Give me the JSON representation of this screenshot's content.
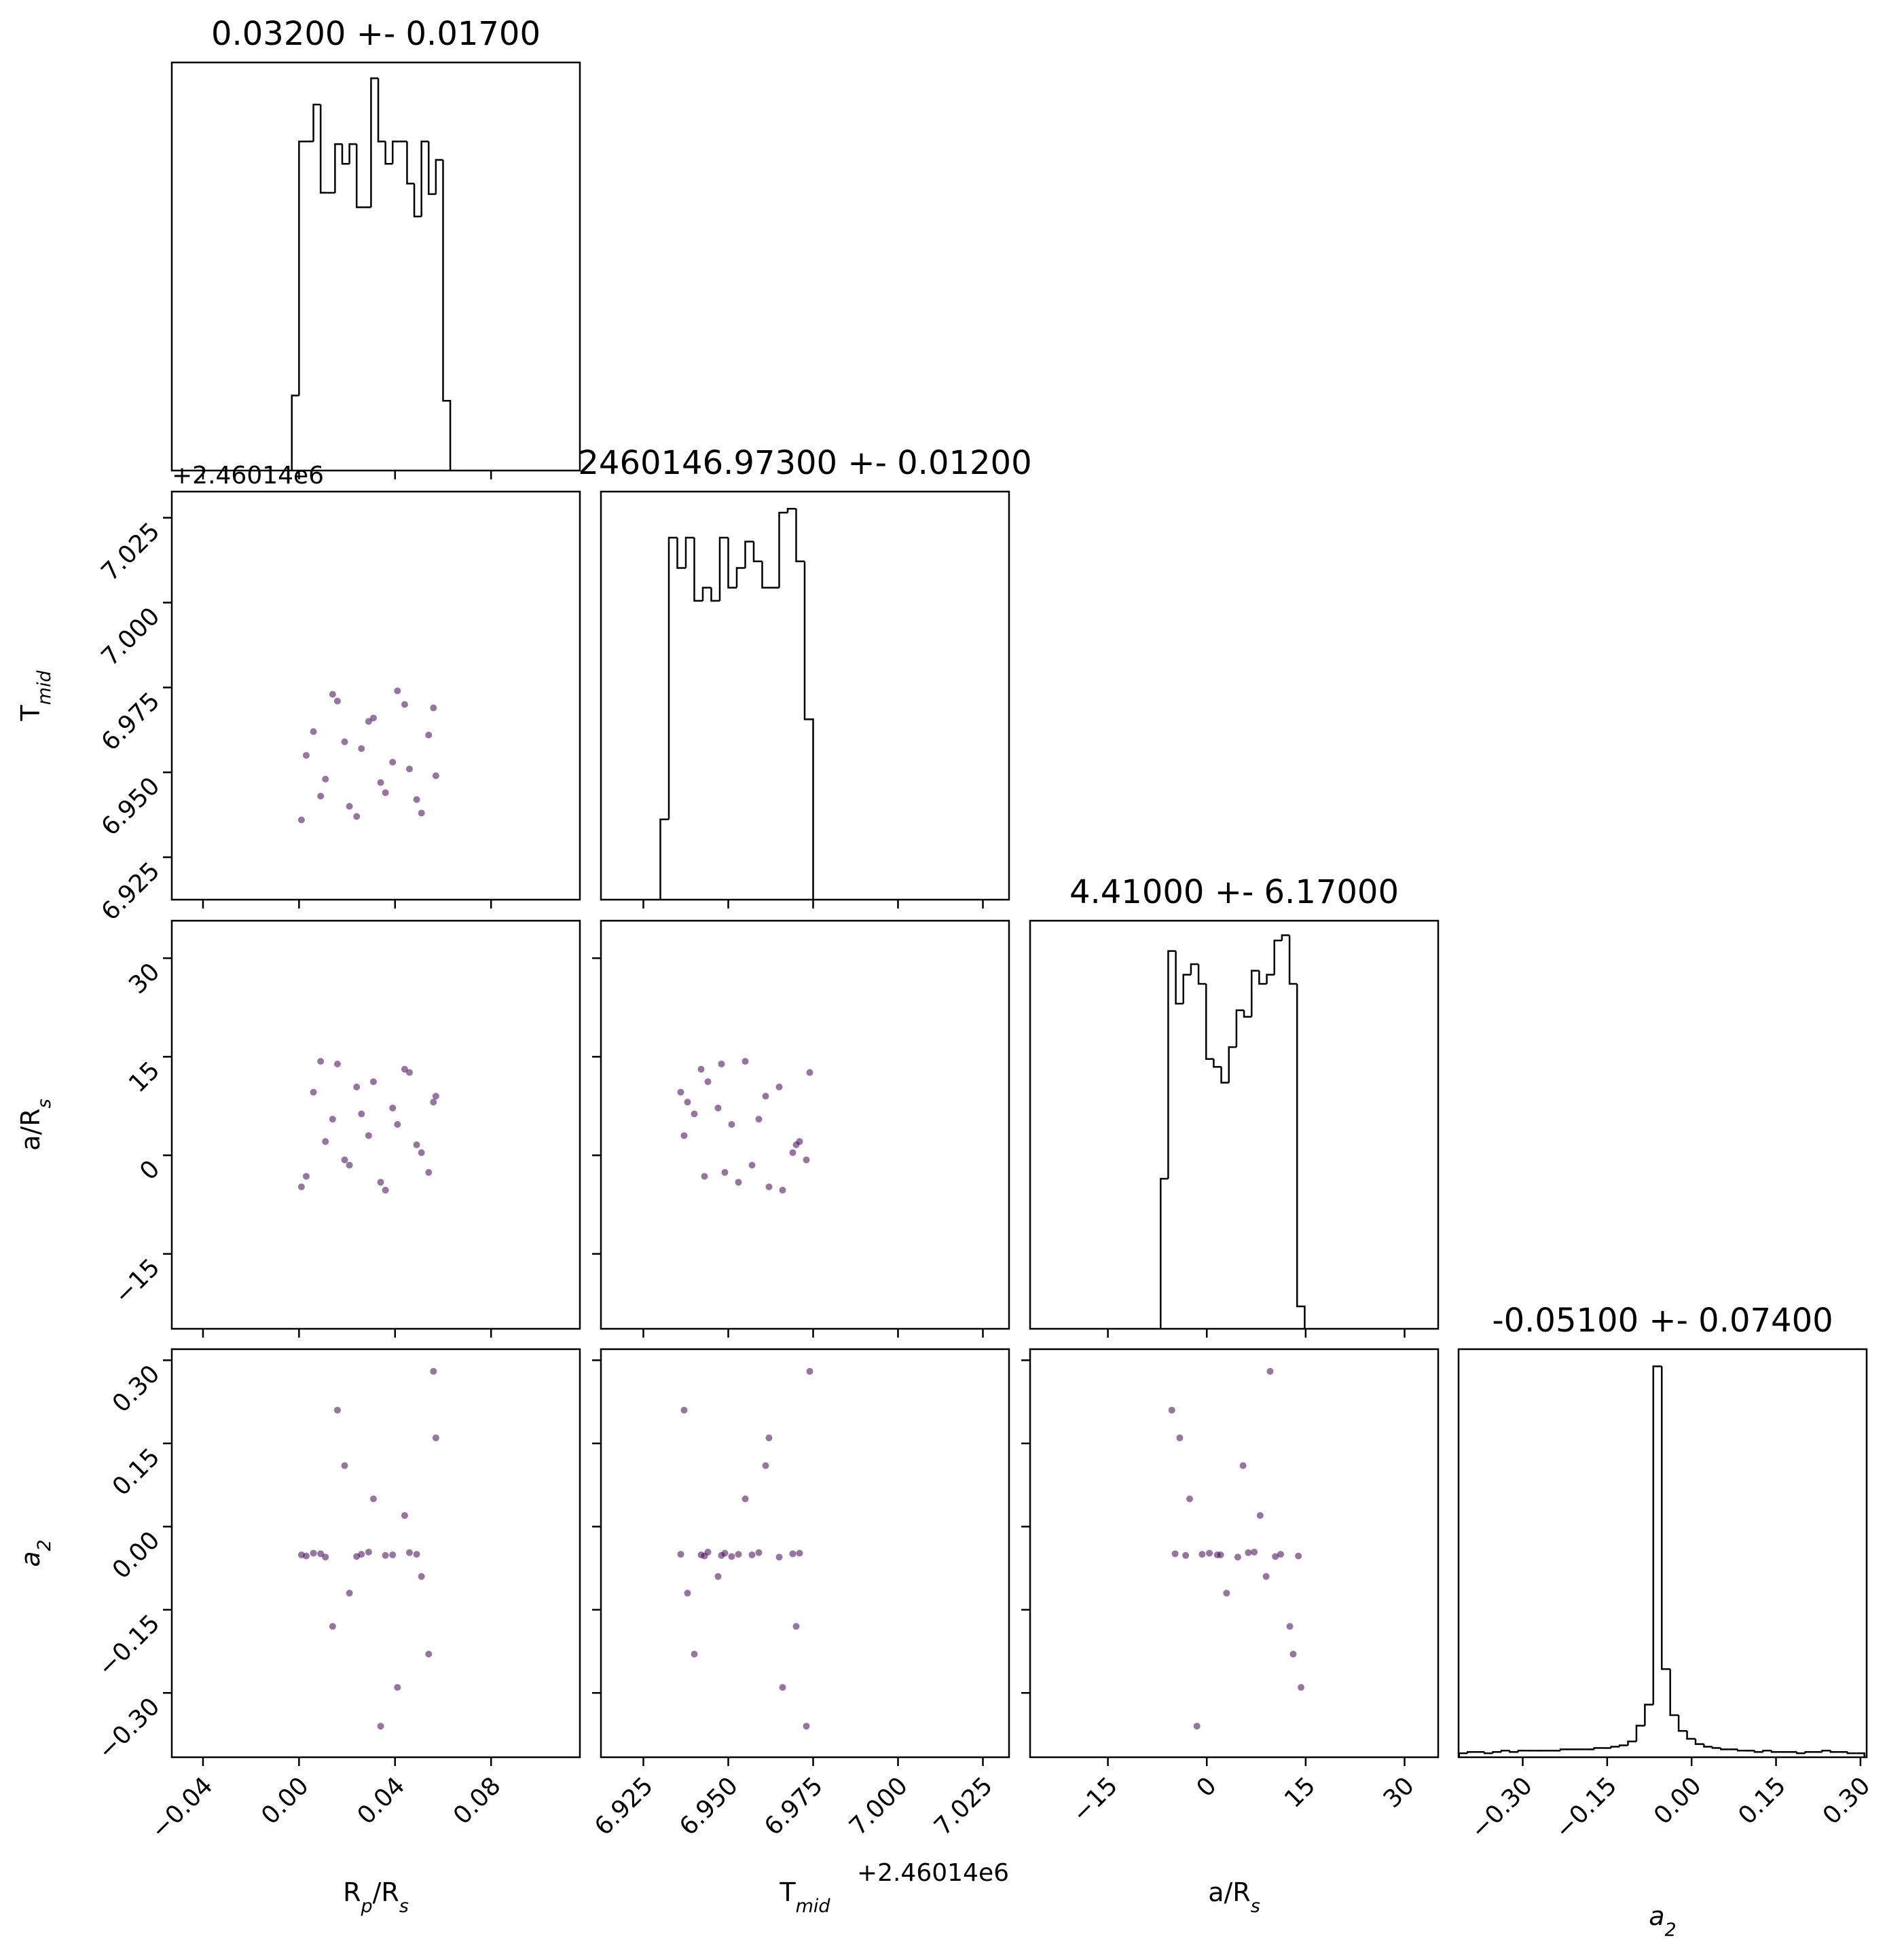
{
  "chart_data": [
    {
      "type": "histogram",
      "title": "0.03200 +- 0.01700",
      "bins": [
        -0.003,
        0,
        0.003,
        0.006,
        0.009,
        0.012,
        0.015,
        0.018,
        0.021,
        0.024,
        0.027,
        0.03,
        0.033,
        0.036,
        0.039,
        0.042,
        0.045,
        0.048,
        0.051,
        0.054,
        0.057,
        0.06,
        0.063
      ],
      "counts": [
        57,
        250,
        250,
        278,
        211,
        211,
        248,
        233,
        248,
        200,
        200,
        298,
        250,
        233,
        250,
        250,
        218,
        193,
        250,
        210,
        236,
        53
      ],
      "xlim": [
        -0.053,
        0.117
      ],
      "xticks": [
        -0.04,
        0,
        0.04,
        0.08
      ],
      "ylim": [
        0,
        310
      ],
      "color": "#000000"
    },
    {
      "type": "scatter",
      "ylabel": [
        "T",
        "mid"
      ],
      "yoffset": "+2.46014e6",
      "color": "#440154",
      "xlim": [
        -0.053,
        0.117
      ],
      "xticks": [
        -0.04,
        0,
        0.04,
        0.08
      ],
      "ylim": [
        6.9125,
        7.0327
      ],
      "yticks": [
        6.925,
        {
          "value": 6.95,
          "label": "6.950"
        },
        6.975,
        {
          "value": 7,
          "label": "7.000"
        },
        7.025
      ],
      "x": [
        0.001,
        0.006,
        0.011,
        0.016,
        0.021,
        0.026,
        0.031,
        0.036,
        0.041,
        0.046,
        0.051,
        0.056,
        0.003,
        0.009,
        0.014,
        0.019,
        0.024,
        0.029,
        0.034,
        0.039,
        0.044,
        0.049,
        0.054,
        0.057
      ],
      "y": [
        6.936,
        6.962,
        6.948,
        6.971,
        6.94,
        6.957,
        6.966,
        6.944,
        6.974,
        6.951,
        6.938,
        6.969,
        6.955,
        6.943,
        6.973,
        6.959,
        6.937,
        6.965,
        6.947,
        6.953,
        6.97,
        6.942,
        6.961,
        6.949
      ]
    },
    {
      "type": "histogram",
      "title": "2460146.97300 +- 0.01200",
      "bins": [
        6.93,
        6.9325,
        6.935,
        6.9375,
        6.94,
        6.9425,
        6.945,
        6.9475,
        6.95,
        6.9525,
        6.955,
        6.9575,
        6.96,
        6.9625,
        6.965,
        6.9675,
        6.97,
        6.9725,
        6.975
      ],
      "counts": [
        61,
        275,
        252,
        275,
        227,
        237,
        227,
        275,
        237,
        252,
        272,
        257,
        237,
        237,
        294,
        297,
        257,
        137
      ],
      "xlim": [
        6.9125,
        7.0327
      ],
      "xticks": [
        6.925,
        6.95,
        6.975,
        7,
        7.025
      ],
      "ylim": [
        0,
        310
      ],
      "color": "#000000"
    },
    {
      "type": "scatter",
      "ylabel": [
        "a/R",
        "s"
      ],
      "color": "#440154",
      "xlim": [
        -0.053,
        0.117
      ],
      "xticks": [
        -0.04,
        0,
        0.04,
        0.08
      ],
      "ylim": [
        -26.4,
        35.7
      ],
      "yticks": [
        {
          "value": -15,
          "label": "−15"
        },
        0,
        15,
        30
      ],
      "x": [
        0.001,
        0.006,
        0.011,
        0.016,
        0.021,
        0.026,
        0.031,
        0.036,
        0.041,
        0.046,
        0.051,
        0.056,
        0.003,
        0.009,
        0.014,
        0.019,
        0.024,
        0.029,
        0.034,
        0.039,
        0.044,
        0.049,
        0.054,
        0.057
      ],
      "y": [
        -4.8,
        9.6,
        2.1,
        13.9,
        -1.5,
        6.3,
        11.2,
        -5.3,
        4.7,
        12.6,
        0.4,
        8.1,
        -3.2,
        14.3,
        5.5,
        -0.7,
        10.4,
        3.0,
        -4.1,
        7.2,
        13.1,
        1.6,
        -2.6,
        9.0
      ]
    },
    {
      "type": "scatter",
      "color": "#440154",
      "xlim": [
        6.9125,
        7.0327
      ],
      "xticks": [
        6.925,
        6.95,
        6.975,
        7,
        7.025
      ],
      "ylim": [
        -26.4,
        35.7
      ],
      "yticks": [
        -15,
        0,
        15,
        30
      ],
      "x": [
        6.936,
        6.962,
        6.948,
        6.971,
        6.94,
        6.957,
        6.966,
        6.944,
        6.974,
        6.951,
        6.938,
        6.969,
        6.955,
        6.943,
        6.973,
        6.959,
        6.937,
        6.965,
        6.947,
        6.953,
        6.97,
        6.942,
        6.961,
        6.949
      ],
      "y": [
        9.6,
        -4.8,
        13.9,
        2.1,
        6.3,
        -1.5,
        -5.3,
        11.2,
        12.6,
        4.7,
        8.1,
        0.4,
        14.3,
        -3.2,
        -0.7,
        5.5,
        3.0,
        10.4,
        7.2,
        -4.1,
        1.6,
        13.1,
        9.0,
        -2.6
      ]
    },
    {
      "type": "histogram",
      "title": "4.41000 +- 6.17000",
      "bins": [
        -7,
        -5.85,
        -4.7,
        -3.55,
        -2.4,
        -1.25,
        -0.1,
        1.05,
        2.2,
        3.35,
        4.5,
        5.65,
        6.8,
        7.95,
        9.1,
        10.25,
        11.4,
        12.55,
        13.7,
        14.85
      ],
      "counts": [
        114,
        287,
        247,
        269,
        277,
        262,
        205,
        199,
        187,
        214,
        242,
        237,
        272,
        262,
        269,
        295,
        299,
        262,
        17
      ],
      "xlim": [
        -26.8,
        35.1
      ],
      "xticks": [
        -15,
        0,
        15,
        30
      ],
      "ylim": [
        0,
        310
      ],
      "color": "#000000"
    },
    {
      "type": "scatter",
      "xlabel": [
        "R",
        "p",
        "/R",
        "s"
      ],
      "ylabel": [
        "a",
        "2"
      ],
      "color": "#440154",
      "xlim": [
        -0.053,
        0.117
      ],
      "xticks": [
        {
          "value": -0.04,
          "label": "−0.04"
        },
        {
          "value": 0,
          "label": "0.00"
        },
        0.04,
        0.08
      ],
      "ylim": [
        -0.416,
        0.32
      ],
      "yticks": [
        {
          "value": -0.3,
          "label": "−0.30"
        },
        {
          "value": -0.15,
          "label": "−0.15"
        },
        {
          "value": 0,
          "label": "0.00"
        },
        0.15,
        {
          "value": 0.3,
          "label": "0.30"
        }
      ],
      "x": [
        0.001,
        0.006,
        0.011,
        0.016,
        0.021,
        0.026,
        0.031,
        0.036,
        0.041,
        0.046,
        0.051,
        0.056,
        0.003,
        0.009,
        0.014,
        0.019,
        0.024,
        0.029,
        0.034,
        0.039,
        0.044,
        0.049,
        0.054,
        0.057
      ],
      "y": [
        -0.051,
        -0.048,
        -0.055,
        0.21,
        -0.12,
        -0.05,
        0.05,
        -0.052,
        -0.29,
        -0.047,
        -0.09,
        0.28,
        -0.053,
        -0.049,
        -0.18,
        0.11,
        -0.054,
        -0.046,
        -0.36,
        -0.051,
        0.02,
        -0.05,
        -0.23,
        0.16
      ]
    },
    {
      "type": "scatter",
      "xlabel": [
        "T",
        "mid"
      ],
      "xoffset": "+2.46014e6",
      "color": "#440154",
      "xlim": [
        6.9125,
        7.0327
      ],
      "xticks": [
        6.925,
        {
          "value": 6.95,
          "label": "6.950"
        },
        6.975,
        {
          "value": 7,
          "label": "7.000"
        },
        7.025
      ],
      "ylim": [
        -0.416,
        0.32
      ],
      "yticks": [
        -0.3,
        -0.15,
        0,
        0.15,
        0.3
      ],
      "x": [
        6.936,
        6.962,
        6.948,
        6.971,
        6.94,
        6.957,
        6.966,
        6.944,
        6.974,
        6.951,
        6.938,
        6.969,
        6.955,
        6.943,
        6.973,
        6.959,
        6.937,
        6.965,
        6.947,
        6.953,
        6.97,
        6.942,
        6.961,
        6.949
      ],
      "y": [
        -0.05,
        0.16,
        -0.052,
        -0.048,
        -0.23,
        -0.051,
        -0.29,
        -0.046,
        0.28,
        -0.054,
        -0.12,
        -0.049,
        0.05,
        -0.053,
        -0.36,
        -0.047,
        0.21,
        -0.055,
        -0.09,
        -0.05,
        -0.18,
        -0.051,
        0.11,
        -0.048
      ]
    },
    {
      "type": "scatter",
      "xlabel": [
        "a/R",
        "s"
      ],
      "color": "#440154",
      "xlim": [
        -26.8,
        35.1
      ],
      "xticks": [
        {
          "value": -15,
          "label": "−15"
        },
        0,
        15,
        30
      ],
      "ylim": [
        -0.416,
        0.32
      ],
      "yticks": [
        -0.3,
        -0.15,
        0,
        0.15,
        0.3
      ],
      "x": [
        -4.8,
        9.6,
        2.1,
        13.9,
        -1.5,
        6.3,
        11.2,
        -5.3,
        4.7,
        12.6,
        0.4,
        8.1,
        -3.2,
        14.3,
        5.5,
        -0.7,
        10.4,
        3.0,
        -4.1,
        7.2,
        13.1,
        1.6,
        -2.6,
        9.0
      ],
      "y": [
        -0.049,
        0.28,
        -0.051,
        -0.053,
        -0.36,
        -0.047,
        -0.05,
        0.21,
        -0.055,
        -0.18,
        -0.048,
        0.02,
        -0.052,
        -0.29,
        0.11,
        -0.05,
        -0.054,
        -0.12,
        0.16,
        -0.046,
        -0.23,
        -0.051,
        0.05,
        -0.09
      ]
    },
    {
      "type": "histogram",
      "title": "-0.05100 +- 0.07400",
      "xlabel": [
        "a",
        "2"
      ],
      "bins": [
        -0.413,
        -0.398,
        -0.383,
        -0.368,
        -0.353,
        -0.338,
        -0.323,
        -0.308,
        -0.293,
        -0.278,
        -0.263,
        -0.248,
        -0.233,
        -0.218,
        -0.203,
        -0.188,
        -0.173,
        -0.158,
        -0.143,
        -0.128,
        -0.113,
        -0.098,
        -0.083,
        -0.068,
        -0.053,
        -0.038,
        -0.023,
        -0.008,
        0.007,
        0.022,
        0.037,
        0.052,
        0.067,
        0.082,
        0.097,
        0.112,
        0.127,
        0.142,
        0.157,
        0.172,
        0.187,
        0.202,
        0.217,
        0.232,
        0.247,
        0.262,
        0.277,
        0.292,
        0.307
      ],
      "counts": [
        3,
        4,
        4,
        3,
        4,
        5,
        4,
        5,
        5,
        5,
        5,
        5,
        6,
        6,
        6,
        6,
        7,
        7,
        8,
        9,
        12,
        24,
        40,
        297,
        67,
        32,
        20,
        14,
        10,
        8,
        7,
        6,
        6,
        5,
        5,
        4,
        5,
        4,
        4,
        4,
        3,
        4,
        4,
        5,
        4,
        4,
        3,
        3
      ],
      "xlim": [
        -0.414,
        0.311
      ],
      "xticks": [
        {
          "value": -0.3,
          "label": "−0.30"
        },
        {
          "value": -0.15,
          "label": "−0.15"
        },
        {
          "value": 0,
          "label": "0.00"
        },
        0.15,
        {
          "value": 0.3,
          "label": "0.30"
        }
      ],
      "ylim": [
        0,
        310
      ],
      "color": "#000000"
    }
  ]
}
